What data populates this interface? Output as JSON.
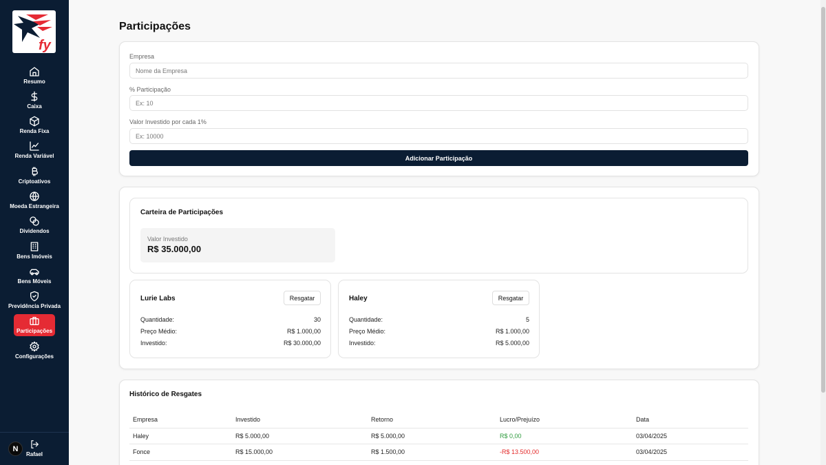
{
  "sidebar": {
    "logo_text": "fy",
    "items": [
      {
        "label": "Resumo",
        "icon": "home-icon"
      },
      {
        "label": "Caixa",
        "icon": "dollar-icon"
      },
      {
        "label": "Renda Fixa",
        "icon": "box-icon"
      },
      {
        "label": "Renda Variável",
        "icon": "line-chart-icon"
      },
      {
        "label": "Criptoativos",
        "icon": "bitcoin-icon"
      },
      {
        "label": "Moeda Estrangeira",
        "icon": "globe-icon"
      },
      {
        "label": "Dividendos",
        "icon": "coins-icon"
      },
      {
        "label": "Bens Imóveis",
        "icon": "building-icon"
      },
      {
        "label": "Bens Móveis",
        "icon": "car-icon"
      },
      {
        "label": "Previdência Privada",
        "icon": "shield-icon"
      },
      {
        "label": "Participações",
        "icon": "briefcase-icon",
        "active": true
      },
      {
        "label": "Configurações",
        "icon": "gear-icon"
      }
    ],
    "user": {
      "avatar_letter": "N",
      "name": "Rafael"
    }
  },
  "page": {
    "title": "Participações"
  },
  "form": {
    "company_label": "Empresa",
    "company_placeholder": "Nome da Empresa",
    "percent_label": "% Participação",
    "percent_placeholder": "Ex: 10",
    "value_label": "Valor Investido por cada 1%",
    "value_placeholder": "Ex: 10000",
    "submit_label": "Adicionar Participação"
  },
  "portfolio": {
    "title": "Carteira de Participações",
    "invested_label": "Valor Investido",
    "invested_value": "R$ 35.000,00",
    "holdings": [
      {
        "name": "Lurie Labs",
        "action": "Resgatar",
        "quantity_label": "Quantidade:",
        "quantity": "30",
        "avg_label": "Preço Médio:",
        "avg_price": "R$ 1.000,00",
        "invested_label": "Investido:",
        "invested": "R$ 30.000,00"
      },
      {
        "name": "Haley",
        "action": "Resgatar",
        "quantity_label": "Quantidade:",
        "quantity": "5",
        "avg_label": "Preço Médio:",
        "avg_price": "R$ 1.000,00",
        "invested_label": "Investido:",
        "invested": "R$ 5.000,00"
      }
    ]
  },
  "history": {
    "title": "Histórico de Resgates",
    "columns": [
      "Empresa",
      "Investido",
      "Retorno",
      "Lucro/Prejuízo",
      "Data"
    ],
    "rows": [
      {
        "company": "Haley",
        "invested": "R$ 5.000,00",
        "return": "R$ 5.000,00",
        "profit": "R$ 0,00",
        "profit_status": "positive",
        "date": "03/04/2025"
      },
      {
        "company": "Fonce",
        "invested": "R$ 15.000,00",
        "return": "R$ 1.500,00",
        "profit": "-R$ 13.500,00",
        "profit_status": "negative",
        "date": "03/04/2025"
      }
    ]
  },
  "colors": {
    "sidebar_bg": "#0b1d33",
    "accent": "#e52b34",
    "profit": "#2e9b3d",
    "loss": "#e32a2a"
  }
}
